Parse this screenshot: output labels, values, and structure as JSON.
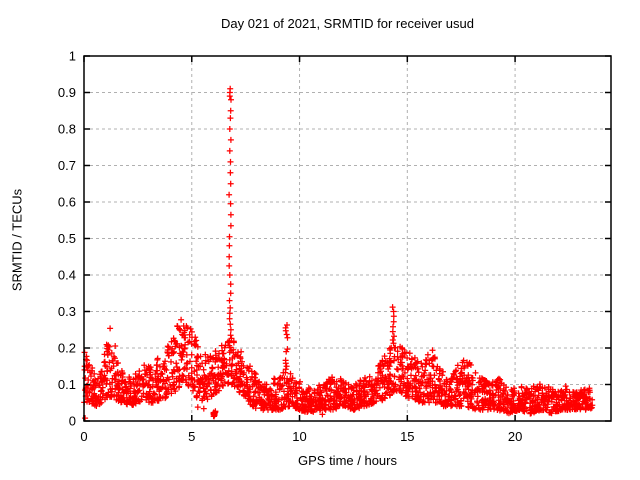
{
  "chart_data": {
    "type": "scatter",
    "title": "Day 021 of 2021, SRMTID for receiver usud",
    "xlabel": "GPS time / hours",
    "ylabel": "SRMTID / TECUs",
    "xlim": [
      0,
      24.45
    ],
    "ylim": [
      0,
      1
    ],
    "xticks": [
      0,
      5,
      10,
      15,
      20
    ],
    "yticks": [
      0,
      0.1,
      0.2,
      0.3,
      0.4,
      0.5,
      0.6,
      0.7,
      0.8,
      0.9,
      1
    ],
    "grid": true,
    "legend": "none",
    "x_data_end": 23.6,
    "marker": {
      "symbol": "plus",
      "color": "#ff0000",
      "size": 7
    },
    "colors": {
      "background": "#ffffff",
      "frame": "#000000",
      "grid": "#b0b0b0",
      "text": "#000000"
    },
    "seed": 21,
    "points_per_hour": 95,
    "scatter_profile": [
      [
        0.0,
        0.05,
        0.21
      ],
      [
        0.3,
        0.05,
        0.16
      ],
      [
        0.6,
        0.04,
        0.12
      ],
      [
        0.9,
        0.05,
        0.18
      ],
      [
        1.2,
        0.06,
        0.26
      ],
      [
        1.4,
        0.06,
        0.22
      ],
      [
        1.7,
        0.05,
        0.14
      ],
      [
        2.2,
        0.04,
        0.12
      ],
      [
        2.7,
        0.05,
        0.15
      ],
      [
        3.2,
        0.05,
        0.17
      ],
      [
        3.7,
        0.06,
        0.19
      ],
      [
        4.2,
        0.08,
        0.25
      ],
      [
        4.6,
        0.1,
        0.29
      ],
      [
        5.0,
        0.08,
        0.25
      ],
      [
        5.4,
        0.05,
        0.2
      ],
      [
        5.8,
        0.06,
        0.18
      ],
      [
        6.2,
        0.08,
        0.2
      ],
      [
        6.6,
        0.1,
        0.22
      ],
      [
        6.9,
        0.1,
        0.23
      ],
      [
        7.2,
        0.08,
        0.2
      ],
      [
        7.6,
        0.05,
        0.16
      ],
      [
        8.1,
        0.03,
        0.12
      ],
      [
        8.6,
        0.03,
        0.11
      ],
      [
        9.1,
        0.03,
        0.13
      ],
      [
        9.5,
        0.04,
        0.14
      ],
      [
        10.0,
        0.03,
        0.11
      ],
      [
        10.5,
        0.02,
        0.09
      ],
      [
        11.0,
        0.03,
        0.1
      ],
      [
        11.5,
        0.03,
        0.12
      ],
      [
        12.0,
        0.04,
        0.12
      ],
      [
        12.5,
        0.03,
        0.1
      ],
      [
        13.0,
        0.04,
        0.12
      ],
      [
        13.5,
        0.05,
        0.14
      ],
      [
        14.0,
        0.06,
        0.19
      ],
      [
        14.4,
        0.08,
        0.21
      ],
      [
        14.8,
        0.07,
        0.2
      ],
      [
        15.2,
        0.06,
        0.19
      ],
      [
        15.7,
        0.05,
        0.17
      ],
      [
        16.2,
        0.05,
        0.2
      ],
      [
        16.7,
        0.04,
        0.15
      ],
      [
        17.2,
        0.04,
        0.15
      ],
      [
        17.7,
        0.04,
        0.18
      ],
      [
        18.2,
        0.03,
        0.14
      ],
      [
        18.7,
        0.03,
        0.11
      ],
      [
        19.2,
        0.03,
        0.12
      ],
      [
        19.7,
        0.02,
        0.09
      ],
      [
        20.2,
        0.03,
        0.1
      ],
      [
        20.7,
        0.02,
        0.09
      ],
      [
        21.2,
        0.03,
        0.11
      ],
      [
        21.7,
        0.02,
        0.09
      ],
      [
        22.2,
        0.03,
        0.1
      ],
      [
        22.7,
        0.03,
        0.09
      ],
      [
        23.1,
        0.03,
        0.09
      ],
      [
        23.6,
        0.03,
        0.09
      ]
    ],
    "spikes": [
      {
        "x": 6.78,
        "values": [
          0.91,
          0.9,
          0.89,
          0.88,
          0.85,
          0.83,
          0.8,
          0.77,
          0.74,
          0.71,
          0.68,
          0.65,
          0.62,
          0.595,
          0.565,
          0.535,
          0.505,
          0.48,
          0.45,
          0.425,
          0.4,
          0.375,
          0.35,
          0.33,
          0.31,
          0.295,
          0.28,
          0.265,
          0.25,
          0.235,
          0.22
        ]
      },
      {
        "x": 9.4,
        "values": [
          0.263,
          0.255,
          0.247,
          0.237,
          0.228,
          0.197,
          0.19,
          0.166,
          0.158,
          0.15,
          0.142
        ]
      },
      {
        "x": 14.35,
        "values": [
          0.312,
          0.3,
          0.287,
          0.272,
          0.258,
          0.245,
          0.232,
          0.222,
          0.213
        ]
      }
    ],
    "outliers": [
      [
        0.05,
        0.008
      ],
      [
        5.28,
        0.038
      ],
      [
        5.56,
        0.034
      ],
      [
        11.06,
        0.018
      ]
    ],
    "dense_blob": {
      "x": 6.05,
      "y": 0.02,
      "count": 14,
      "x_jitter": 0.05,
      "y_jitter": 0.008
    }
  }
}
